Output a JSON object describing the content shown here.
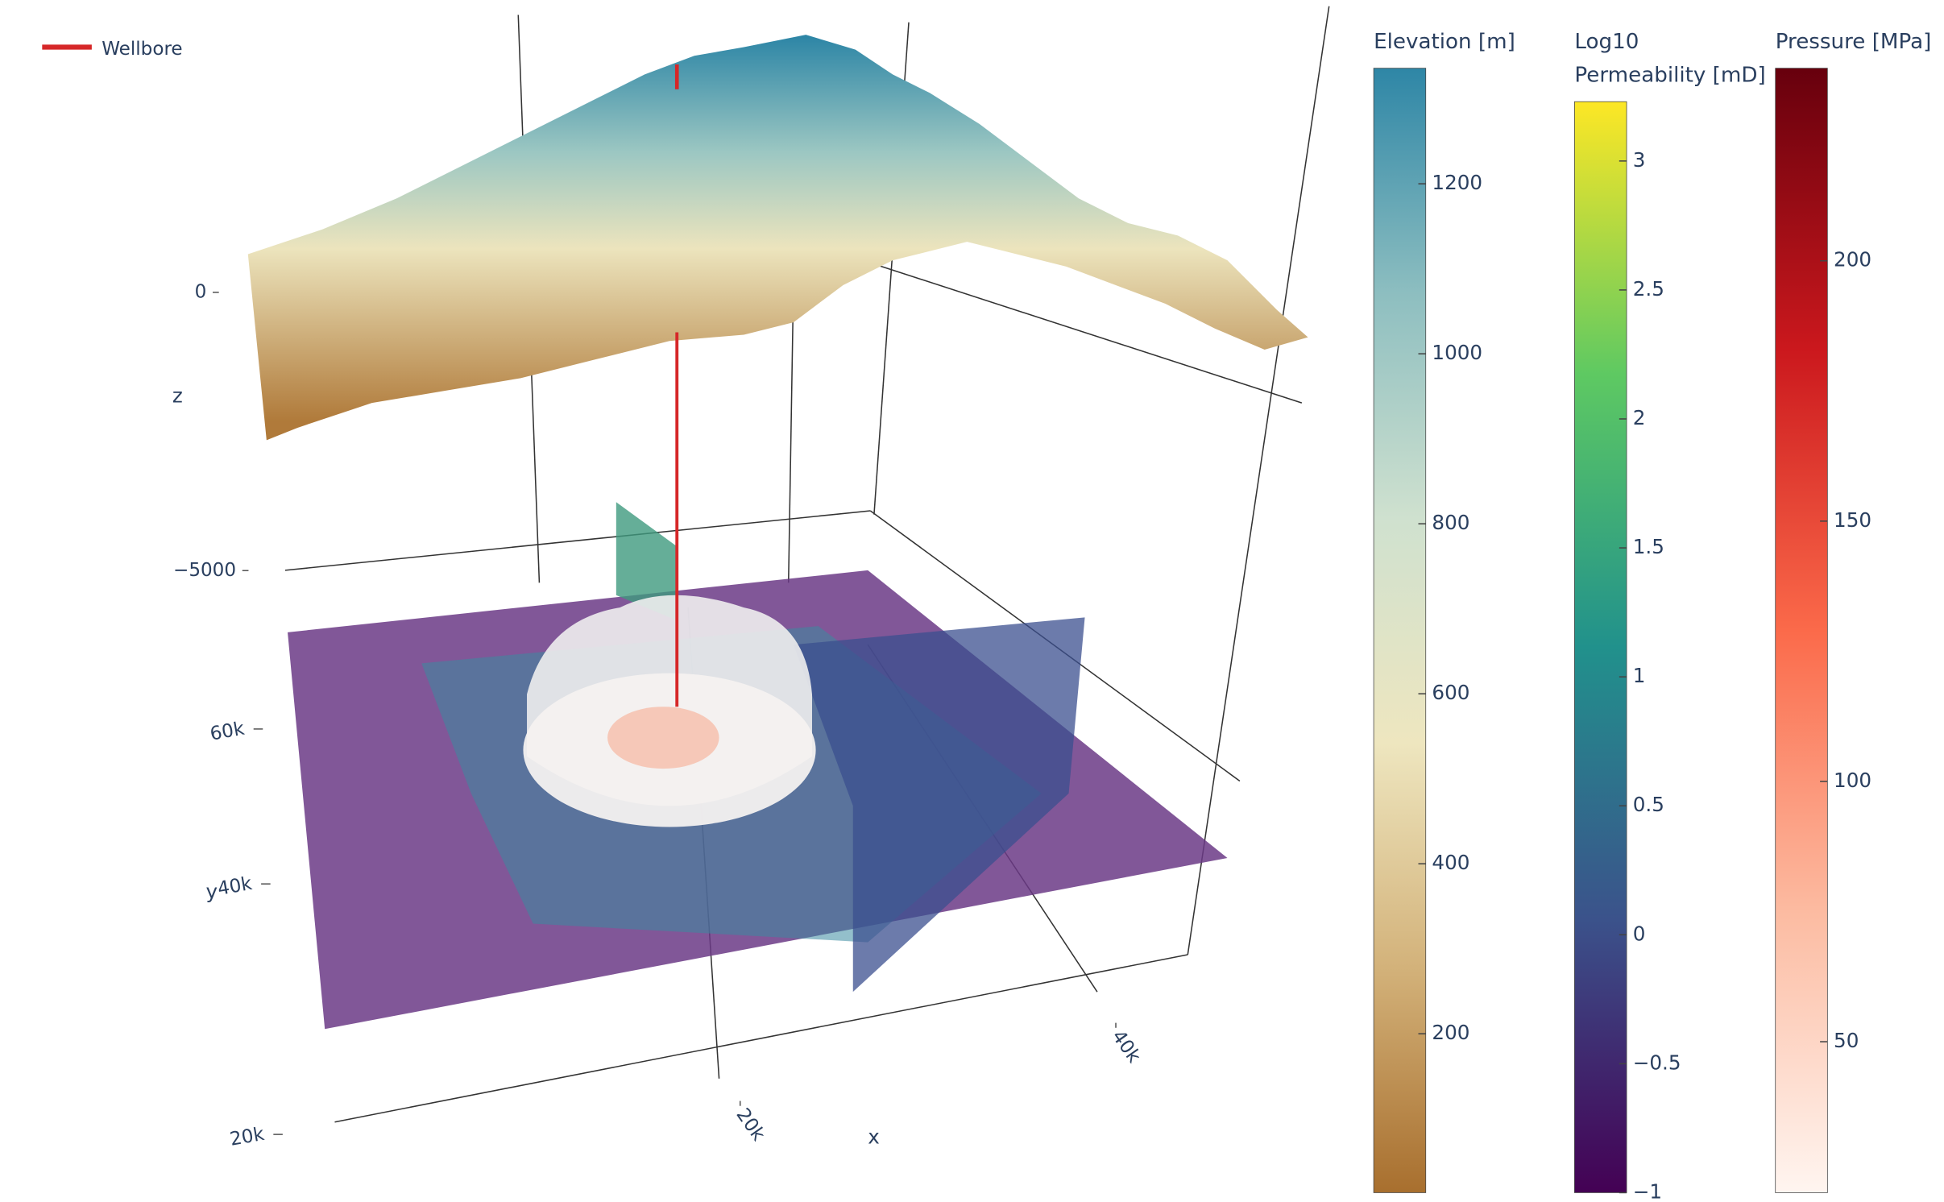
{
  "chart_data": {
    "type": "scene3d",
    "legend": {
      "name": "Wellbore",
      "color": "#d62728"
    },
    "scene": {
      "x_title": "x",
      "y_title": "y",
      "z_title": "z",
      "xlim": [
        10000,
        50000
      ],
      "xticks": [
        {
          "value": 20000,
          "label": "20k"
        },
        {
          "value": 40000,
          "label": "40k"
        }
      ],
      "ylim": [
        20000,
        60000
      ],
      "yticks": [
        {
          "value": 20000,
          "label": "20k"
        },
        {
          "value": 40000,
          "label": "40k"
        },
        {
          "value": 60000,
          "label": "60k"
        }
      ],
      "zlim": [
        -7000,
        2000
      ],
      "zticks": [
        {
          "value": -5000,
          "label": "−5000"
        },
        0
      ]
    },
    "colorbars": [
      {
        "title_lines": [
          "Elevation [m]"
        ],
        "lim": [
          13,
          1336
        ],
        "ticks": [
          200,
          400,
          600,
          800,
          1000,
          1200
        ],
        "colors": [
          "#a86f2e",
          "#d3b27a",
          "#eee6bf",
          "#cfe1cf",
          "#8dbec0",
          "#2e86a6"
        ]
      },
      {
        "title_lines": [
          "Log10",
          "Permeability [mD]"
        ],
        "lim": [
          -1,
          3.23
        ],
        "ticks": [
          {
            "value": -1,
            "label": "−1"
          },
          {
            "value": -0.5,
            "label": "−0.5"
          },
          0,
          0.5,
          1,
          1.5,
          2,
          2.5,
          3
        ],
        "colors": [
          "#440154",
          "#3b528b",
          "#21918c",
          "#5ec962",
          "#fde725"
        ]
      },
      {
        "title_lines": [
          "Pressure [MPa]"
        ],
        "lim": [
          21,
          237
        ],
        "ticks": [
          50,
          100,
          150,
          200
        ],
        "colors": [
          "#fff5f0",
          "#fcbba1",
          "#fb6a4a",
          "#cb181d",
          "#67000d"
        ]
      }
    ]
  }
}
